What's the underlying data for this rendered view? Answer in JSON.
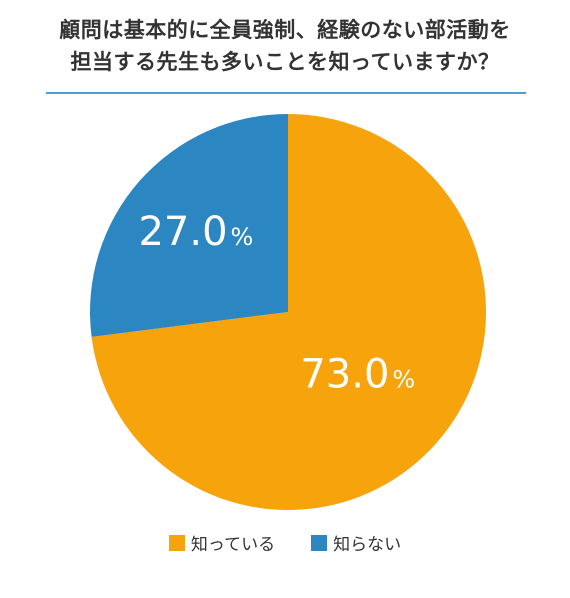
{
  "title_lines": [
    "顧問は基本的に全員強制、経験のない部活動を",
    "担当する先生も多いことを知っていますか？"
  ],
  "chart_data": {
    "type": "pie",
    "title": "顧問は基本的に全員強制、経験のない部活動を担当する先生も多いことを知っていますか？",
    "categories": [
      "知っている",
      "知らない"
    ],
    "values": [
      73.0,
      27.0
    ],
    "data_labels": [
      "73.0%",
      "27.0%"
    ],
    "colors": [
      "#F7A30C",
      "#2C86C2"
    ],
    "legend_position": "bottom",
    "start": "12 o'clock",
    "direction": "clockwise"
  }
}
